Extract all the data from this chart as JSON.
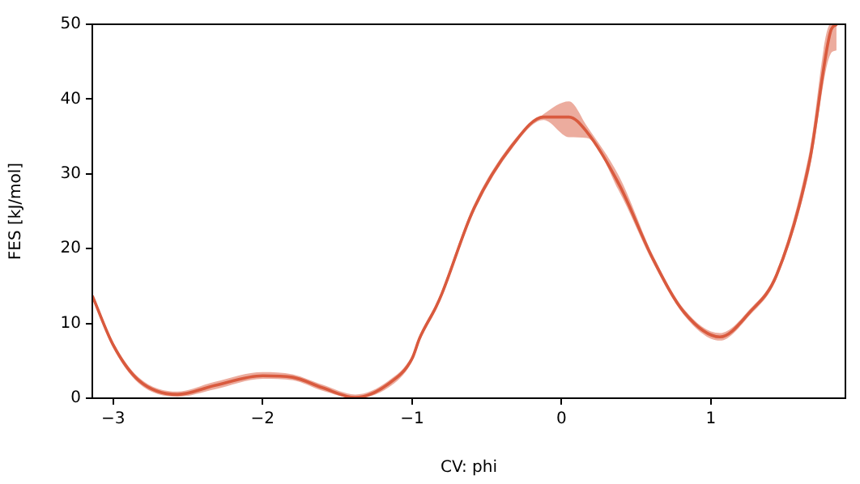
{
  "chart_data": {
    "type": "line",
    "xlabel": "CV: phi",
    "ylabel": "FES [kJ/mol]",
    "xlim": [
      -3.14,
      1.9
    ],
    "xticks": [
      -3,
      -2,
      -1,
      0,
      1
    ],
    "ylim": [
      0,
      50
    ],
    "yticks": [
      0,
      10,
      20,
      30,
      40,
      50
    ],
    "grid": false,
    "legend": false,
    "marker": "none",
    "line_style": "solid",
    "series": [
      {
        "color": "#d95a3e",
        "x": [
          -3.14,
          -3.0,
          -2.83,
          -2.57,
          -2.32,
          -2.0,
          -1.8,
          -1.6,
          -1.38,
          -1.16,
          -1.0,
          -0.95,
          -0.84,
          -0.8,
          -0.59,
          -0.33,
          -0.12,
          0.05,
          0.17,
          0.39,
          0.61,
          0.82,
          1.06,
          1.26,
          1.44,
          1.66,
          1.8,
          1.84
        ],
        "values": [
          13.7,
          7.1,
          2.4,
          0.5,
          1.7,
          3.0,
          2.8,
          1.4,
          0.1,
          1.9,
          5.3,
          8.0,
          12.2,
          14.0,
          25.2,
          33.8,
          37.6,
          37.6,
          35.6,
          28.4,
          18.7,
          11.5,
          8.2,
          11.5,
          16.5,
          31.7,
          49.0,
          50
        ],
        "lower": [
          13.3,
          6.7,
          2.0,
          0.2,
          1.2,
          2.6,
          2.4,
          1.0,
          0,
          1.4,
          4.9,
          7.6,
          11.8,
          13.6,
          24.7,
          33.4,
          37.2,
          34.9,
          34.8,
          27.5,
          18.2,
          11.1,
          7.7,
          11.1,
          16.0,
          30.5,
          46.0,
          46.5
        ],
        "upper": [
          14.1,
          7.5,
          2.8,
          0.9,
          2.2,
          3.5,
          3.2,
          1.8,
          0.5,
          2.3,
          5.7,
          8.4,
          12.6,
          14.4,
          25.7,
          34.2,
          38.0,
          39.7,
          36.4,
          29.5,
          19.2,
          11.9,
          8.7,
          11.9,
          17.0,
          33.0,
          50,
          50
        ]
      }
    ]
  }
}
